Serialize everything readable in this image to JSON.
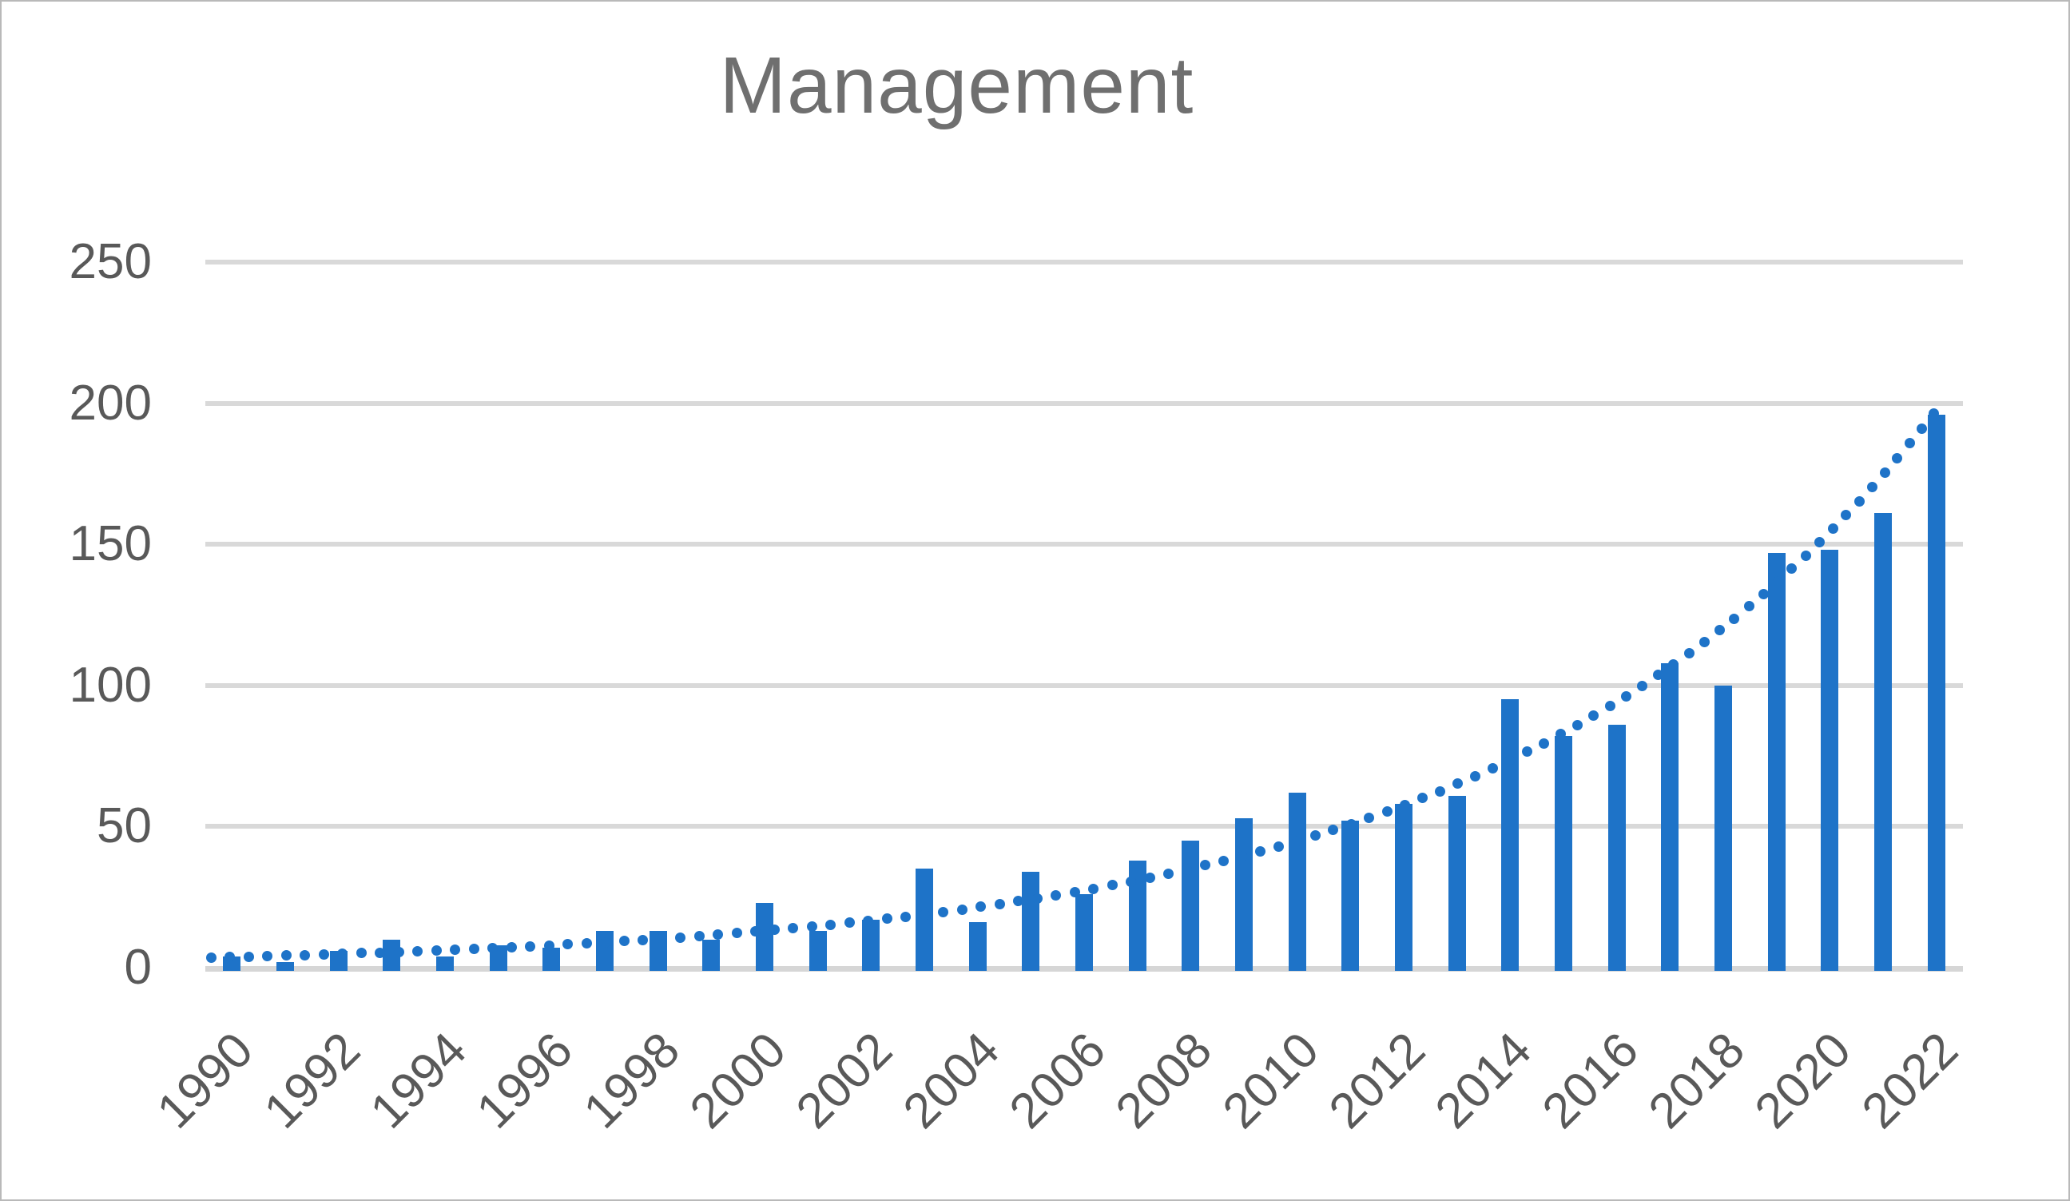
{
  "frame": {
    "background_color": "#ffffff",
    "border_color": "#b9b9b9"
  },
  "chart_data": {
    "type": "bar",
    "title": "Management",
    "categories": [
      1990,
      1991,
      1992,
      1993,
      1994,
      1995,
      1996,
      1997,
      1998,
      1999,
      2000,
      2001,
      2002,
      2003,
      2004,
      2005,
      2006,
      2007,
      2008,
      2009,
      2010,
      2011,
      2012,
      2013,
      2014,
      2015,
      2016,
      2017,
      2018,
      2019,
      2020,
      2021,
      2022
    ],
    "values": [
      4,
      2,
      6,
      10,
      4,
      8,
      7,
      13,
      13,
      10,
      23,
      13,
      17,
      35,
      16,
      34,
      26,
      38,
      45,
      53,
      62,
      52,
      58,
      61,
      95,
      82,
      86,
      108,
      100,
      147,
      148,
      161,
      196
    ],
    "x_tick_labels": [
      "1990",
      "1992",
      "1994",
      "1996",
      "1998",
      "2000",
      "2002",
      "2004",
      "2006",
      "2008",
      "2010",
      "2012",
      "2014",
      "2016",
      "2018",
      "2020",
      "2022"
    ],
    "y_ticks": [
      0,
      50,
      100,
      150,
      200,
      250
    ],
    "ylim": [
      0,
      250
    ],
    "xlabel": "",
    "ylabel": "",
    "grid": true,
    "legend_position": "none",
    "trendline": {
      "type": "exponential",
      "style": "dotted",
      "start_value": 3.8,
      "growth_per_year": 0.1235,
      "color": "#1E73C8"
    },
    "colors": {
      "bar": "#1E73C8",
      "gridline": "#d9d9d9",
      "axis_line": "#d6d6d6",
      "tick_labels": "#595959",
      "title": "#6f6f6f"
    }
  }
}
